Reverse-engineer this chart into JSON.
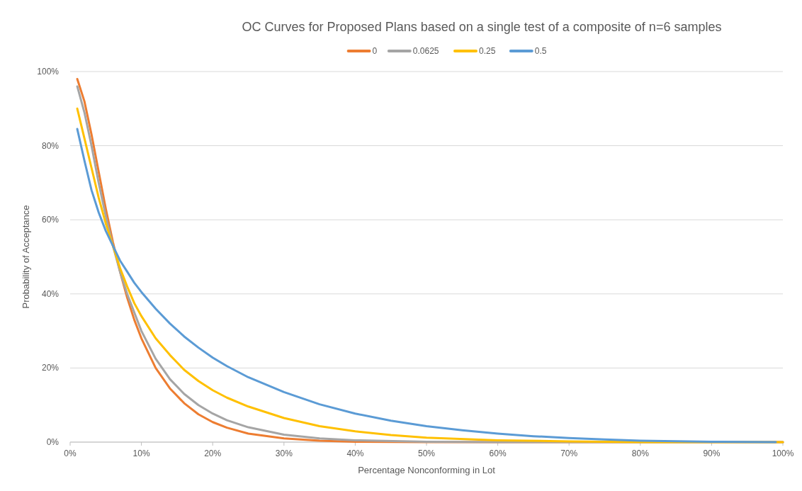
{
  "chart_data": {
    "type": "line",
    "title": "OC Curves for Proposed Plans based on a single test of a composite of n=6 samples",
    "xlabel": "Percentage Nonconforming in Lot",
    "ylabel": "Probability of Acceptance",
    "xlim": [
      0,
      100
    ],
    "xticks": [
      {
        "value": 0,
        "label": "0%"
      },
      {
        "value": 10,
        "label": "10%"
      },
      {
        "value": 20,
        "label": "20%"
      },
      {
        "value": 30,
        "label": "30%"
      },
      {
        "value": 40,
        "label": "40%"
      },
      {
        "value": 50,
        "label": "50%"
      },
      {
        "value": 60,
        "label": "60%"
      },
      {
        "value": 70,
        "label": "70%"
      },
      {
        "value": 80,
        "label": "80%"
      },
      {
        "value": 90,
        "label": "90%"
      },
      {
        "value": 100,
        "label": "100%"
      }
    ],
    "ylim": [
      0,
      100
    ],
    "yticks": [
      {
        "value": 0,
        "label": "0%"
      },
      {
        "value": 20,
        "label": "20%"
      },
      {
        "value": 40,
        "label": "40%"
      },
      {
        "value": 60,
        "label": "60%"
      },
      {
        "value": 80,
        "label": "80%"
      },
      {
        "value": 100,
        "label": "100%"
      }
    ],
    "grid": "y",
    "legend": "top",
    "marker": "none",
    "line_style": "solid",
    "series": [
      {
        "name": "0",
        "color": "#ed7d31",
        "x": [
          1,
          2,
          3,
          4,
          5,
          6,
          7,
          8,
          9,
          10,
          12,
          14,
          16,
          18,
          20,
          22,
          25,
          30,
          35,
          40,
          50,
          100
        ],
        "values": [
          98,
          92,
          83,
          73,
          63,
          54,
          46,
          39,
          33,
          28,
          20,
          14.5,
          10.5,
          7.5,
          5.4,
          3.9,
          2.3,
          1,
          0.4,
          0.1,
          0,
          0
        ]
      },
      {
        "name": "0.0625",
        "color": "#a5a5a5",
        "x": [
          1,
          2,
          3,
          4,
          5,
          6,
          7,
          8,
          9,
          10,
          12,
          14,
          16,
          18,
          20,
          22,
          25,
          30,
          35,
          40,
          50,
          60,
          100
        ],
        "values": [
          96,
          89,
          80,
          70,
          61,
          53,
          46,
          40,
          35,
          30,
          22.5,
          17,
          13,
          10,
          7.7,
          5.9,
          4,
          2,
          1,
          0.5,
          0.1,
          0,
          0
        ]
      },
      {
        "name": "0.25",
        "color": "#ffc000",
        "x": [
          1,
          2,
          3,
          4,
          5,
          6,
          7,
          8,
          9,
          10,
          12,
          14,
          16,
          18,
          20,
          22,
          25,
          30,
          35,
          40,
          45,
          50,
          60,
          70,
          80,
          100
        ],
        "values": [
          90,
          82,
          74,
          66,
          59,
          53,
          47,
          42,
          37.5,
          34,
          28,
          23.5,
          19.5,
          16.5,
          14,
          12,
          9.6,
          6.5,
          4.3,
          2.9,
          1.9,
          1.2,
          0.5,
          0.2,
          0,
          0
        ]
      },
      {
        "name": "0.5",
        "color": "#5b9bd5",
        "x": [
          1,
          2,
          3,
          4,
          5,
          6,
          7,
          8,
          9,
          10,
          12,
          14,
          16,
          18,
          20,
          22,
          25,
          30,
          35,
          40,
          45,
          50,
          55,
          60,
          65,
          70,
          75,
          80,
          90,
          99
        ],
        "values": [
          84.5,
          76,
          68,
          62,
          57,
          53,
          49,
          46,
          43,
          40.5,
          36,
          32,
          28.5,
          25.5,
          22.8,
          20.5,
          17.5,
          13.5,
          10.2,
          7.7,
          5.8,
          4.3,
          3.2,
          2.3,
          1.6,
          1.1,
          0.7,
          0.4,
          0.1,
          0
        ]
      }
    ]
  }
}
